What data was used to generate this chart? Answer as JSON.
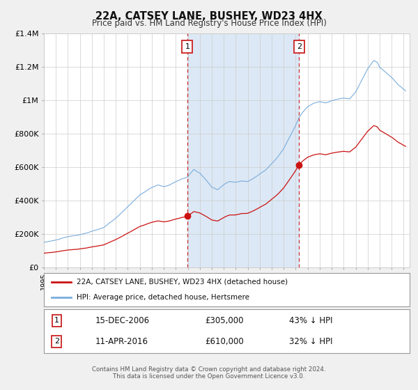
{
  "title": "22A, CATSEY LANE, BUSHEY, WD23 4HX",
  "subtitle": "Price paid vs. HM Land Registry's House Price Index (HPI)",
  "legend1": "22A, CATSEY LANE, BUSHEY, WD23 4HX (detached house)",
  "legend2": "HPI: Average price, detached house, Hertsmere",
  "marker1_date": 2006.96,
  "marker1_value": 305000,
  "marker2_date": 2016.28,
  "marker2_value": 610000,
  "footer1": "Contains HM Land Registry data © Crown copyright and database right 2024.",
  "footer2": "This data is licensed under the Open Government Licence v3.0.",
  "xmin": 1995.0,
  "xmax": 2025.5,
  "ymin": 0,
  "ymax": 1400000,
  "yticks": [
    0,
    200000,
    400000,
    600000,
    800000,
    1000000,
    1200000,
    1400000
  ],
  "ylabels": [
    "£0",
    "£200K",
    "£400K",
    "£600K",
    "£800K",
    "£1M",
    "£1.2M",
    "£1.4M"
  ],
  "bg_color": "#f0f0f0",
  "plot_bg": "#ffffff",
  "shade_color": "#dce8f5",
  "hpi_color": "#7aaddd",
  "price_color": "#cc1111",
  "marker_color": "#cc1111",
  "vline_color": "#cc3333",
  "grid_color": "#cccccc",
  "shade_x1": 2006.96,
  "shade_x2": 2016.28
}
